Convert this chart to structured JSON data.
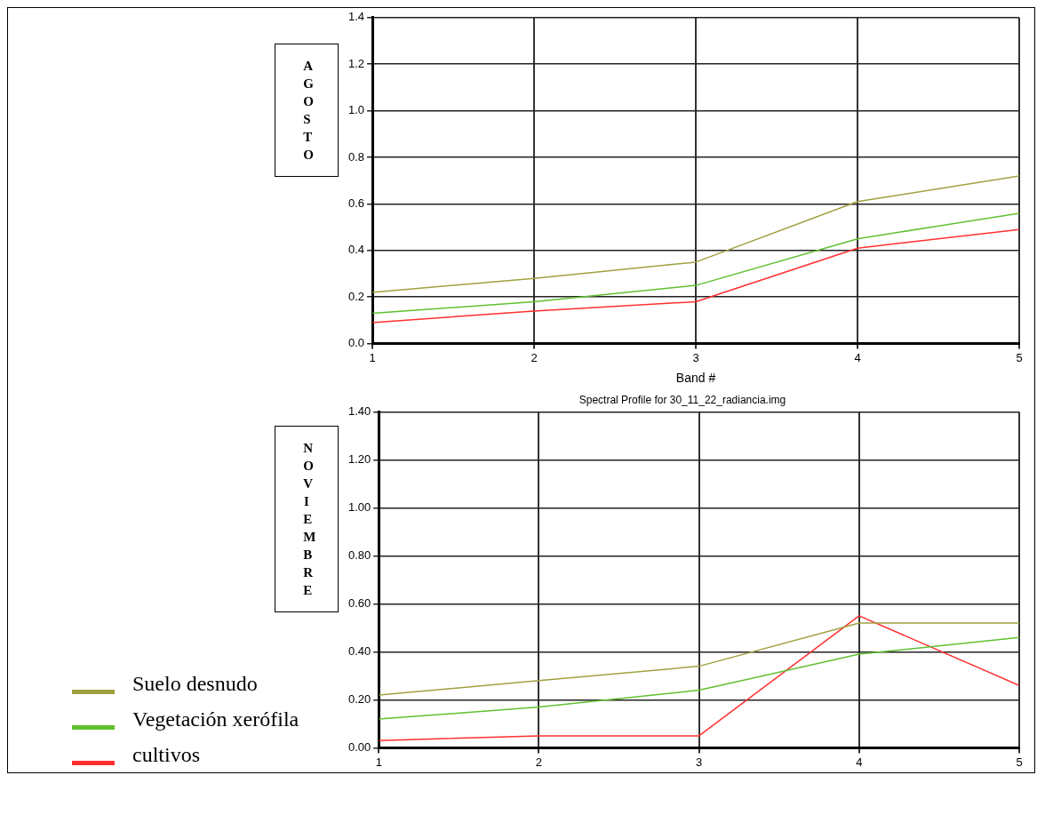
{
  "chart_data": [
    {
      "type": "line",
      "title": "AGOSTO",
      "xlabel": "Band #",
      "x": [
        1,
        2,
        3,
        4,
        5
      ],
      "xlim": [
        1,
        5
      ],
      "xticks": [
        1,
        2,
        3,
        4,
        5
      ],
      "ylim": [
        0,
        1.4
      ],
      "yticks": [
        {
          "value": 0,
          "label": "0.0"
        },
        {
          "value": 0.2,
          "label": "0.2"
        },
        {
          "value": 0.4,
          "label": "0.4"
        },
        {
          "value": 0.6,
          "label": "0.6"
        },
        {
          "value": 0.8,
          "label": "0.8"
        },
        {
          "value": 1,
          "label": "1.0"
        },
        {
          "value": 1.2,
          "label": "1.2"
        },
        {
          "value": 1.4,
          "label": "1.4"
        }
      ],
      "grid": true,
      "marker": "none",
      "legend": false,
      "series": [
        {
          "color": "#a0a040",
          "values": [
            0.22,
            0.28,
            0.35,
            0.61,
            0.72
          ]
        },
        {
          "color": "#60c030",
          "values": [
            0.13,
            0.18,
            0.25,
            0.45,
            0.56
          ]
        },
        {
          "color": "#ff3030",
          "values": [
            0.09,
            0.14,
            0.18,
            0.41,
            0.49
          ]
        }
      ]
    },
    {
      "type": "line",
      "title": "NOVIEMBRE",
      "subtitle": "Spectral Profile for 30_11_22_radiancia.img",
      "x": [
        1,
        2,
        3,
        4,
        5
      ],
      "xlim": [
        1,
        5
      ],
      "xticks": [
        1,
        2,
        3,
        4,
        5
      ],
      "ylim": [
        0,
        1.4
      ],
      "yticks": [
        {
          "value": 0,
          "label": "0.00"
        },
        {
          "value": 0.2,
          "label": "0.20"
        },
        {
          "value": 0.4,
          "label": "0.40"
        },
        {
          "value": 0.6,
          "label": "0.60"
        },
        {
          "value": 0.8,
          "label": "0.80"
        },
        {
          "value": 1,
          "label": "1.00"
        },
        {
          "value": 1.2,
          "label": "1.20"
        },
        {
          "value": 1.4,
          "label": "1.40"
        }
      ],
      "grid": true,
      "marker": "none",
      "legend": "left",
      "series": [
        {
          "name": "Suelo desnudo",
          "color": "#a0a040",
          "values": [
            0.22,
            0.28,
            0.34,
            0.52,
            0.52
          ]
        },
        {
          "name": "Vegetación xerófila",
          "color": "#60c030",
          "values": [
            0.12,
            0.17,
            0.24,
            0.39,
            0.46
          ]
        },
        {
          "name": "cultivos",
          "color": "#ff3030",
          "values": [
            0.03,
            0.05,
            0.05,
            0.55,
            0.26
          ]
        }
      ]
    }
  ]
}
